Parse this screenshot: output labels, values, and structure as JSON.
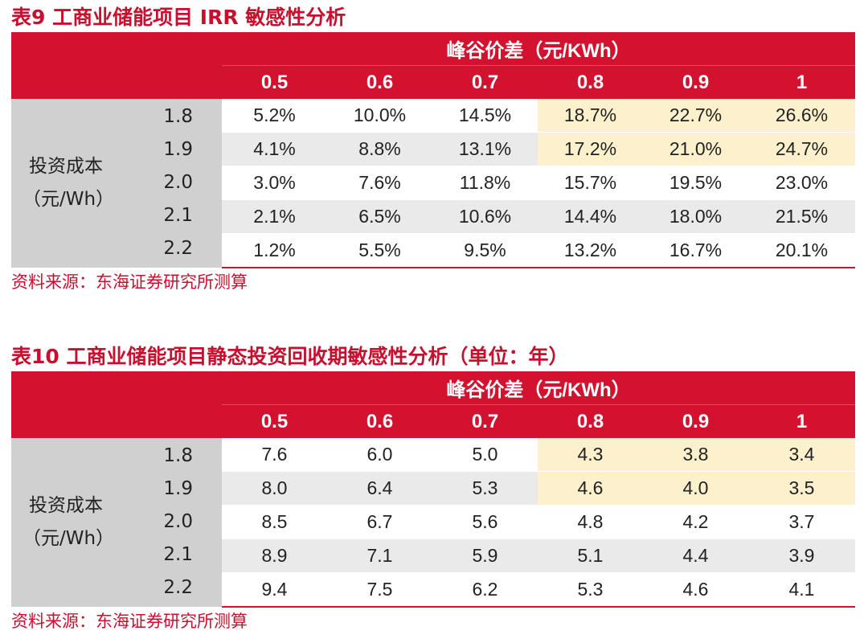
{
  "table9": {
    "title": "表9  工商业储能项目 IRR 敏感性分析",
    "header_group": "峰谷价差（元/KWh）",
    "row_label": "投资成本",
    "row_label_unit": "（元/Wh）",
    "columns": [
      "0.5",
      "0.6",
      "0.7",
      "0.8",
      "0.9",
      "1"
    ],
    "rows": [
      {
        "cost": "1.8",
        "cells": [
          "5.2%",
          "10.0%",
          "14.5%",
          "18.7%",
          "22.7%",
          "26.6%"
        ]
      },
      {
        "cost": "1.9",
        "cells": [
          "4.1%",
          "8.8%",
          "13.1%",
          "17.2%",
          "21.0%",
          "24.7%"
        ]
      },
      {
        "cost": "2.0",
        "cells": [
          "3.0%",
          "7.6%",
          "11.8%",
          "15.7%",
          "19.5%",
          "23.0%"
        ]
      },
      {
        "cost": "2.1",
        "cells": [
          "2.1%",
          "6.5%",
          "10.6%",
          "14.4%",
          "18.0%",
          "21.5%"
        ]
      },
      {
        "cost": "2.2",
        "cells": [
          "1.2%",
          "5.5%",
          "9.5%",
          "13.2%",
          "16.7%",
          "20.1%"
        ]
      }
    ],
    "source": "资料来源：东海证券研究所测算"
  },
  "table10": {
    "title": "表10  工商业储能项目静态投资回收期敏感性分析（单位：年）",
    "header_group": "峰谷价差（元/KWh）",
    "row_label": "投资成本",
    "row_label_unit": "（元/Wh）",
    "columns": [
      "0.5",
      "0.6",
      "0.7",
      "0.8",
      "0.9",
      "1"
    ],
    "rows": [
      {
        "cost": "1.8",
        "cells": [
          "7.6",
          "6.0",
          "5.0",
          "4.3",
          "3.8",
          "3.4"
        ]
      },
      {
        "cost": "1.9",
        "cells": [
          "8.0",
          "6.4",
          "5.3",
          "4.6",
          "4.0",
          "3.5"
        ]
      },
      {
        "cost": "2.0",
        "cells": [
          "8.5",
          "6.7",
          "5.6",
          "4.8",
          "4.2",
          "3.7"
        ]
      },
      {
        "cost": "2.1",
        "cells": [
          "8.9",
          "7.1",
          "5.9",
          "5.1",
          "4.4",
          "3.9"
        ]
      },
      {
        "cost": "2.2",
        "cells": [
          "9.4",
          "7.5",
          "6.2",
          "5.3",
          "4.6",
          "4.1"
        ]
      }
    ],
    "source": "资料来源：东海证券研究所测算"
  },
  "colors": {
    "brand_red": "#d2122e",
    "highlight": "#fdf1cd",
    "side_gray": "#d0d0d0",
    "row_shade": "#eaeaea"
  }
}
